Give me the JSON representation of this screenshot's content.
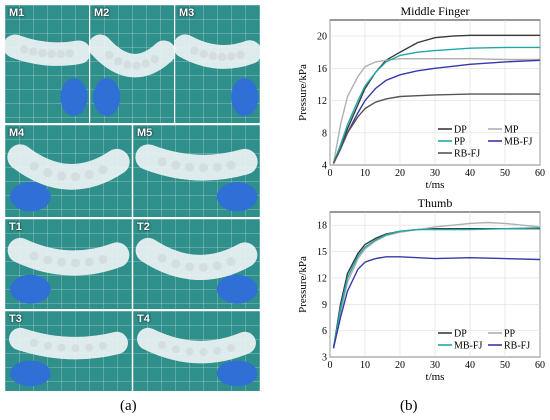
{
  "photo_panels": [
    {
      "label": "M1"
    },
    {
      "label": "M2"
    },
    {
      "label": "M3"
    },
    {
      "label": "M4"
    },
    {
      "label": "M5"
    },
    {
      "label": "T1"
    },
    {
      "label": "T2"
    },
    {
      "label": "T3"
    },
    {
      "label": "T4"
    }
  ],
  "captions": {
    "a": "(a)",
    "b": "(b)"
  },
  "chart_data": [
    {
      "type": "line",
      "title": "Middle Finger",
      "xlabel": "t/ms",
      "ylabel": "Pressure/kPa",
      "xlim": [
        0,
        60
      ],
      "ylim": [
        4,
        22
      ],
      "xticks": [
        0,
        10,
        20,
        30,
        40,
        50,
        60
      ],
      "yticks": [
        4,
        8,
        12,
        16,
        20
      ],
      "grid": true,
      "legend_placement": "bottom-right",
      "series": [
        {
          "name": "DP",
          "color": "#3a3a3a",
          "x": [
            1,
            3,
            5,
            8,
            10,
            13,
            16,
            20,
            25,
            30,
            35,
            40,
            50,
            60
          ],
          "y": [
            4.2,
            6,
            8.5,
            11.5,
            13.5,
            15.5,
            17,
            18,
            19.2,
            19.8,
            20,
            20.1,
            20.1,
            20.1
          ]
        },
        {
          "name": "MP",
          "color": "#b0b0b0",
          "x": [
            1,
            3,
            5,
            8,
            10,
            13,
            16,
            20,
            25,
            30,
            40,
            50,
            60
          ],
          "y": [
            4.2,
            9,
            12.5,
            15,
            16.2,
            16.8,
            17,
            17.2,
            17.2,
            17.2,
            17.2,
            17.1,
            17.1
          ]
        },
        {
          "name": "PP",
          "color": "#1fa8a8",
          "x": [
            1,
            3,
            5,
            8,
            10,
            13,
            16,
            20,
            25,
            30,
            40,
            50,
            60
          ],
          "y": [
            4.2,
            6.5,
            9,
            12,
            13.8,
            15.5,
            16.8,
            17.6,
            18,
            18.2,
            18.5,
            18.6,
            18.6
          ]
        },
        {
          "name": "MB-FJ",
          "color": "#3838a8",
          "x": [
            1,
            3,
            5,
            8,
            10,
            13,
            16,
            20,
            25,
            30,
            40,
            50,
            60
          ],
          "y": [
            4.2,
            6,
            8,
            10.5,
            12,
            13.5,
            14.5,
            15.2,
            15.7,
            16,
            16.5,
            16.8,
            17
          ]
        },
        {
          "name": "RB-FJ",
          "color": "#555555",
          "x": [
            1,
            3,
            5,
            8,
            10,
            13,
            16,
            20,
            25,
            30,
            40,
            50,
            60
          ],
          "y": [
            4.2,
            6,
            8,
            10,
            11,
            11.8,
            12.2,
            12.5,
            12.6,
            12.7,
            12.8,
            12.8,
            12.8
          ]
        }
      ]
    },
    {
      "type": "line",
      "title": "Thumb",
      "xlabel": "t/ms",
      "ylabel": "Pressure/kPa",
      "xlim": [
        0,
        60
      ],
      "ylim": [
        3,
        19.5
      ],
      "xticks": [
        0,
        10,
        20,
        30,
        40,
        50,
        60
      ],
      "yticks": [
        3,
        6,
        9,
        12,
        15,
        18
      ],
      "grid": true,
      "legend_placement": "bottom-right",
      "series": [
        {
          "name": "DP",
          "color": "#3a3a3a",
          "x": [
            1,
            3,
            5,
            8,
            10,
            13,
            16,
            20,
            25,
            30,
            40,
            50,
            60
          ],
          "y": [
            4,
            9,
            12.5,
            14.8,
            15.8,
            16.5,
            17,
            17.3,
            17.5,
            17.6,
            17.6,
            17.6,
            17.6
          ]
        },
        {
          "name": "PP",
          "color": "#b0b0b0",
          "x": [
            1,
            3,
            5,
            8,
            10,
            13,
            16,
            20,
            25,
            30,
            35,
            40,
            45,
            50,
            55,
            60
          ],
          "y": [
            4,
            8,
            11.5,
            14.2,
            15.3,
            16.2,
            16.8,
            17.2,
            17.5,
            17.8,
            18,
            18.2,
            18.3,
            18.2,
            18,
            17.8
          ]
        },
        {
          "name": "MB-FJ",
          "color": "#1fa8a8",
          "x": [
            1,
            3,
            5,
            8,
            10,
            13,
            16,
            20,
            25,
            30,
            40,
            50,
            60
          ],
          "y": [
            4,
            8.5,
            12,
            14.5,
            15.5,
            16.3,
            16.9,
            17.3,
            17.5,
            17.5,
            17.5,
            17.6,
            17.7
          ]
        },
        {
          "name": "RB-FJ",
          "color": "#3838a8",
          "x": [
            1,
            3,
            5,
            8,
            10,
            13,
            16,
            20,
            25,
            30,
            40,
            50,
            60
          ],
          "y": [
            4,
            7.5,
            10.5,
            13,
            13.8,
            14.2,
            14.4,
            14.4,
            14.3,
            14.2,
            14.3,
            14.2,
            14.1
          ]
        }
      ]
    }
  ]
}
